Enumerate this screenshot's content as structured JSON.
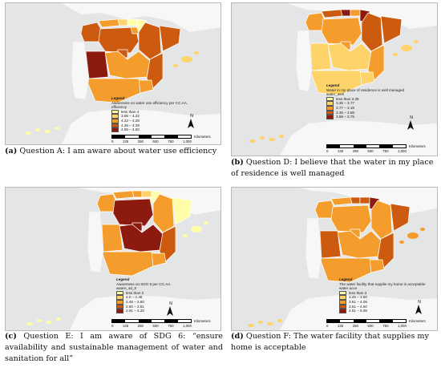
{
  "colors": {
    "c1": "#fffda8",
    "c2": "#fed36a",
    "c3": "#f59d2c",
    "c4": "#cc5a0f",
    "c5": "#8c1a0e",
    "land": "#f7f7f7",
    "sea": "#e4e5e6"
  },
  "north_label": "N",
  "panels": [
    {
      "legend_title": "Legend",
      "legend_subtitle": "Awareness on water use efficiency per CC.AA.",
      "legend_field": "efficiency",
      "classes": [
        "less than 4",
        "3.65 – 4.22",
        "4.22 – 4.28",
        "4.36 – 4.39",
        "4.55 – 4.60"
      ],
      "caption_tag": "(a)",
      "caption_text": "Question A:  I am aware about water use efficiency"
    },
    {
      "legend_title": "Legend",
      "legend_subtitle": "Water in my place of residence is well managed",
      "legend_field": "water_well",
      "classes": [
        "less than 3.35",
        "3.35 – 3.77",
        "3.77 – 3.18",
        "3.35 – 3.58",
        "3.58 – 3.75"
      ],
      "caption_tag": "(b)",
      "caption_text": "Question D:  I believe that the water in my place of residence is well managed"
    },
    {
      "legend_title": "Legend",
      "legend_subtitle": "Awareness on SDG 6 per CC.AA.",
      "legend_field": "aware_sd_6",
      "classes": [
        "less than 2",
        "2.0 – 2.48",
        "2.48 – 2.60",
        "2.60 – 2.91",
        "2.91 – 4.20"
      ],
      "caption_tag": "(c)",
      "caption_text": "Question E:  I am aware of SDG 6: “ensure availability and sustainable management of water and sanitation for all”"
    },
    {
      "legend_title": "Legend",
      "legend_subtitle": "The water facility that supplie my home is acceptable",
      "legend_field": "water acce",
      "classes": [
        "less than 3",
        "3.25 – 3.50",
        "3.51 – 4.05",
        "3.51 – 4.50",
        "4.51 – 5.05"
      ],
      "caption_tag": "(d)",
      "caption_text": "Question F: The water facility that supplies my home is acceptable"
    }
  ],
  "scale": {
    "ticks": [
      "0",
      "125",
      "250",
      "500",
      "750",
      "1,000"
    ],
    "unit": "Kilometers"
  }
}
